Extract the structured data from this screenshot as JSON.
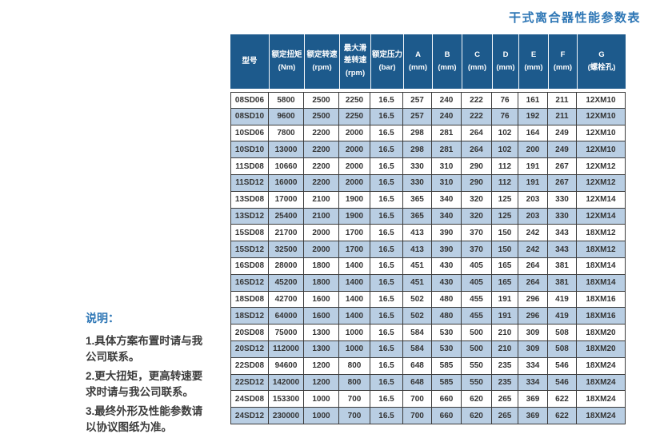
{
  "title": "干式离合器性能参数表",
  "colors": {
    "header_bg": "#1d5a8c",
    "header_text": "#ffffff",
    "row_alt_bg": "#b9cee3",
    "grid_line": "#3b3b3b",
    "accent_blue": "#2d76b5",
    "body_text": "#333333"
  },
  "table": {
    "columns": [
      {
        "key": "model",
        "label": "型号",
        "unit": ""
      },
      {
        "key": "rated-torque",
        "label": "额定扭矩",
        "unit": "(Nm)"
      },
      {
        "key": "rated-speed",
        "label": "额定转速",
        "unit": "(rpm)"
      },
      {
        "key": "max-slip-speed",
        "label": "最大滑\n差转速",
        "unit": "(rpm)"
      },
      {
        "key": "rated-pressure",
        "label": "额定压力",
        "unit": "(bar)"
      },
      {
        "key": "dim-a",
        "label": "A",
        "unit": "(mm)"
      },
      {
        "key": "dim-b",
        "label": "B",
        "unit": "(mm)"
      },
      {
        "key": "dim-c",
        "label": "C",
        "unit": "(mm)"
      },
      {
        "key": "dim-d",
        "label": "D",
        "unit": "(mm)"
      },
      {
        "key": "dim-e",
        "label": "E",
        "unit": "(mm)"
      },
      {
        "key": "dim-f",
        "label": "F",
        "unit": "(mm)"
      },
      {
        "key": "dim-g",
        "label": "G",
        "unit": "(螺栓孔)"
      }
    ],
    "rows": [
      [
        "08SD06",
        "5800",
        "2500",
        "2250",
        "16.5",
        "257",
        "240",
        "222",
        "76",
        "161",
        "211",
        "12XM10"
      ],
      [
        "08SD10",
        "9600",
        "2500",
        "2250",
        "16.5",
        "257",
        "240",
        "222",
        "76",
        "192",
        "211",
        "12XM10"
      ],
      [
        "10SD06",
        "7800",
        "2200",
        "2000",
        "16.5",
        "298",
        "281",
        "264",
        "102",
        "164",
        "249",
        "12XM10"
      ],
      [
        "10SD10",
        "13000",
        "2200",
        "2000",
        "16.5",
        "298",
        "281",
        "264",
        "102",
        "200",
        "249",
        "12XM10"
      ],
      [
        "11SD08",
        "10660",
        "2200",
        "2000",
        "16.5",
        "330",
        "310",
        "290",
        "112",
        "191",
        "267",
        "12XM12"
      ],
      [
        "11SD12",
        "16000",
        "2200",
        "2000",
        "16.5",
        "330",
        "310",
        "290",
        "112",
        "191",
        "267",
        "12XM12"
      ],
      [
        "13SD08",
        "17000",
        "2100",
        "1900",
        "16.5",
        "365",
        "340",
        "320",
        "125",
        "203",
        "330",
        "12XM14"
      ],
      [
        "13SD12",
        "25400",
        "2100",
        "1900",
        "16.5",
        "365",
        "340",
        "320",
        "125",
        "203",
        "330",
        "12XM14"
      ],
      [
        "15SD08",
        "21700",
        "2000",
        "1700",
        "16.5",
        "413",
        "390",
        "370",
        "150",
        "242",
        "343",
        "18XM12"
      ],
      [
        "15SD12",
        "32500",
        "2000",
        "1700",
        "16.5",
        "413",
        "390",
        "370",
        "150",
        "242",
        "343",
        "18XM12"
      ],
      [
        "16SD08",
        "28000",
        "1800",
        "1400",
        "16.5",
        "451",
        "430",
        "405",
        "165",
        "264",
        "381",
        "18XM14"
      ],
      [
        "16SD12",
        "45200",
        "1800",
        "1400",
        "16.5",
        "451",
        "430",
        "405",
        "165",
        "264",
        "381",
        "18XM14"
      ],
      [
        "18SD08",
        "42700",
        "1600",
        "1400",
        "16.5",
        "502",
        "480",
        "455",
        "191",
        "296",
        "419",
        "18XM16"
      ],
      [
        "18SD12",
        "64000",
        "1600",
        "1400",
        "16.5",
        "502",
        "480",
        "455",
        "191",
        "296",
        "419",
        "18XM16"
      ],
      [
        "20SD08",
        "75000",
        "1300",
        "1000",
        "16.5",
        "584",
        "530",
        "500",
        "210",
        "309",
        "508",
        "18XM20"
      ],
      [
        "20SD12",
        "112000",
        "1300",
        "1000",
        "16.5",
        "584",
        "530",
        "500",
        "210",
        "309",
        "508",
        "18XM20"
      ],
      [
        "22SD08",
        "94600",
        "1200",
        "800",
        "16.5",
        "648",
        "585",
        "550",
        "235",
        "334",
        "546",
        "18XM24"
      ],
      [
        "22SD12",
        "142000",
        "1200",
        "800",
        "16.5",
        "648",
        "585",
        "550",
        "235",
        "334",
        "546",
        "18XM24"
      ],
      [
        "24SD08",
        "153300",
        "1000",
        "700",
        "16.5",
        "700",
        "660",
        "620",
        "265",
        "369",
        "622",
        "18XM24"
      ],
      [
        "24SD12",
        "230000",
        "1000",
        "700",
        "16.5",
        "700",
        "660",
        "620",
        "265",
        "369",
        "622",
        "18XM24"
      ]
    ]
  },
  "notes": {
    "heading": "说明：",
    "items": [
      {
        "text": "1.具体方案布置时请与我\n公司联系。"
      },
      {
        "text": "2.更大扭矩，更高转速要\n求时请与我公司联系。"
      },
      {
        "text": "3.最终外形及性能参数请\n以协议图纸为准。"
      }
    ]
  }
}
